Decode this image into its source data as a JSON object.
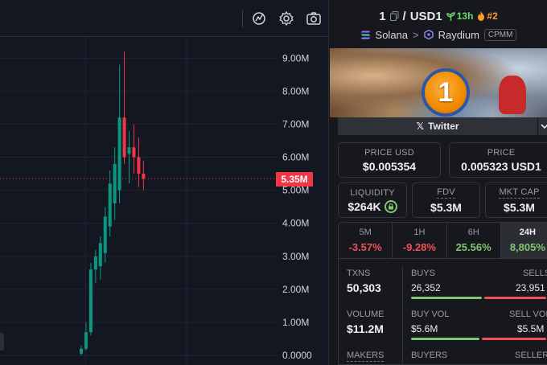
{
  "toolbar": {
    "icons": [
      "indicator-icon",
      "settings-icon",
      "camera-icon"
    ]
  },
  "chart_data": {
    "type": "candlestick",
    "price_axis": [
      "9.00M",
      "8.00M",
      "7.00M",
      "6.00M",
      "5.00M",
      "4.00M",
      "3.00M",
      "2.00M",
      "1.00M",
      "0.0000"
    ],
    "y_range": [
      0,
      9300000
    ],
    "current_price_label": "5.35M",
    "current_price": 5350000,
    "candles": [
      {
        "o": 50000,
        "h": 300000,
        "l": 0,
        "c": 200000
      },
      {
        "o": 200000,
        "h": 1000000,
        "l": 150000,
        "c": 700000
      },
      {
        "o": 700000,
        "h": 2800000,
        "l": 600000,
        "c": 2600000
      },
      {
        "o": 2600000,
        "h": 3200000,
        "l": 2200000,
        "c": 3000000
      },
      {
        "o": 2700000,
        "h": 3600000,
        "l": 2300000,
        "c": 3400000
      },
      {
        "o": 3100000,
        "h": 4500000,
        "l": 2800000,
        "c": 4200000
      },
      {
        "o": 3900000,
        "h": 5600000,
        "l": 3600000,
        "c": 5200000
      },
      {
        "o": 4600000,
        "h": 6300000,
        "l": 4100000,
        "c": 5800000
      },
      {
        "o": 5000000,
        "h": 8800000,
        "l": 4600000,
        "c": 7200000
      },
      {
        "o": 7200000,
        "h": 9200000,
        "l": 5800000,
        "c": 6000000
      },
      {
        "o": 6100000,
        "h": 6800000,
        "l": 5200000,
        "c": 6300000
      },
      {
        "o": 6300000,
        "h": 7000000,
        "l": 5500000,
        "c": 6000000
      },
      {
        "o": 6000000,
        "h": 6600000,
        "l": 5100000,
        "c": 5500000
      },
      {
        "o": 5500000,
        "h": 5900000,
        "l": 5000000,
        "c": 5350000
      }
    ],
    "colors": {
      "up": "#089981",
      "down": "#f23645",
      "grid": "#1f2330",
      "axis_text": "#d1d4dc"
    }
  },
  "pair": {
    "base": "1",
    "quote": "USD1",
    "age": "13h",
    "rank": "#2",
    "chain": "Solana",
    "dex": "Raydium",
    "pool_type": "CPMM"
  },
  "banner": {
    "coin_text": "1"
  },
  "socials": {
    "twitter_label": "Twitter"
  },
  "prices": {
    "usd_label": "PRICE USD",
    "usd_value": "$0.005354",
    "native_label": "PRICE",
    "native_value": "0.005323 USD1"
  },
  "metrics": {
    "liquidity_label": "LIQUIDITY",
    "liquidity_value": "$264K",
    "fdv_label": "FDV",
    "fdv_value": "$5.3M",
    "mcap_label": "MKT CAP",
    "mcap_value": "$5.3M"
  },
  "timeframes": [
    {
      "label": "5M",
      "value": "-3.57%"
    },
    {
      "label": "1H",
      "value": "-9.28%"
    },
    {
      "label": "6H",
      "value": "25.56%"
    },
    {
      "label": "24H",
      "value": "8,805%"
    }
  ],
  "stats": {
    "txns_label": "TXNS",
    "txns_value": "50,303",
    "buys_label": "BUYS",
    "buys_value": "26,352",
    "sells_label": "SELLS",
    "sells_value": "23,951",
    "volume_label": "VOLUME",
    "volume_value": "$11.2M",
    "buy_vol_label": "BUY VOL",
    "buy_vol_value": "$5.6M",
    "sell_vol_label": "SELL VOL",
    "sell_vol_value": "$5.5M",
    "makers_label": "MAKERS",
    "buyers_label": "BUYERS",
    "sellers_label": "SELLERS",
    "buy_ratio": 0.524,
    "buy_vol_ratio": 0.505
  },
  "colors": {
    "up": "#7fc86f",
    "down": "#f0505a",
    "accent_orange": "#ff9b2b"
  }
}
